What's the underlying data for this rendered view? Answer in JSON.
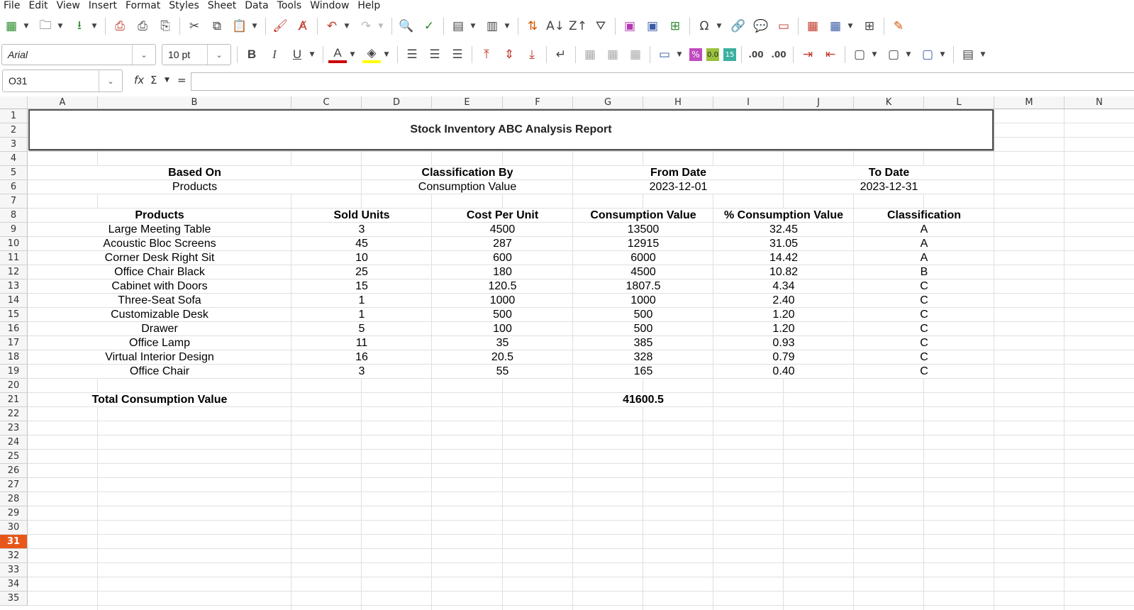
{
  "menu": [
    "File",
    "Edit",
    "View",
    "Insert",
    "Format",
    "Styles",
    "Sheet",
    "Data",
    "Tools",
    "Window",
    "Help"
  ],
  "toolbar": {
    "font_name": "Arial",
    "font_size": "10 pt",
    "bold_label": "B",
    "italic_label": "I",
    "underline_label": "U",
    "font_color_label": "A",
    "percent_label": "%",
    "number_label": "0.0",
    "date_label": "15",
    "add_decimal_label": ".00",
    "remove_decimal_label": ".00"
  },
  "formula_bar": {
    "name_box": "O31",
    "fx_label": "fx",
    "sum_label": "Σ",
    "equals_label": "=",
    "content": ""
  },
  "columns": [
    "A",
    "B",
    "C",
    "D",
    "E",
    "F",
    "G",
    "H",
    "I",
    "J",
    "K",
    "L",
    "M",
    "N"
  ],
  "rows": [
    "1",
    "2",
    "3",
    "4",
    "5",
    "6",
    "7",
    "8",
    "9",
    "10",
    "11",
    "12",
    "13",
    "14",
    "15",
    "16",
    "17",
    "18",
    "19",
    "20",
    "21",
    "22",
    "23",
    "24",
    "25",
    "26",
    "27",
    "28",
    "29",
    "30",
    "31",
    "32",
    "33",
    "34",
    "35"
  ],
  "active_row": "31",
  "report": {
    "title": "Stock Inventory ABC Analysis Report",
    "based_on_label": "Based On",
    "based_on_value": "Products",
    "classification_by_label": "Classification By",
    "classification_by_value": "Consumption Value",
    "from_date_label": "From Date",
    "from_date_value": "2023-12-01",
    "to_date_label": "To Date",
    "to_date_value": "2023-12-31",
    "headers": [
      "Products",
      "Sold Units",
      "Cost Per Unit",
      "Consumption Value",
      "% Consumption Value",
      "Classification"
    ],
    "items": [
      [
        "Large Meeting Table",
        "3",
        "4500",
        "13500",
        "32.45",
        "A"
      ],
      [
        "Acoustic Bloc Screens",
        "45",
        "287",
        "12915",
        "31.05",
        "A"
      ],
      [
        "Corner Desk Right Sit",
        "10",
        "600",
        "6000",
        "14.42",
        "A"
      ],
      [
        "Office Chair Black",
        "25",
        "180",
        "4500",
        "10.82",
        "B"
      ],
      [
        "Cabinet with Doors",
        "15",
        "120.5",
        "1807.5",
        "4.34",
        "C"
      ],
      [
        "Three-Seat Sofa",
        "1",
        "1000",
        "1000",
        "2.40",
        "C"
      ],
      [
        "Customizable Desk",
        "1",
        "500",
        "500",
        "1.20",
        "C"
      ],
      [
        "Drawer",
        "5",
        "100",
        "500",
        "1.20",
        "C"
      ],
      [
        "Office Lamp",
        "11",
        "35",
        "385",
        "0.93",
        "C"
      ],
      [
        "Virtual Interior Design",
        "16",
        "20.5",
        "328",
        "0.79",
        "C"
      ],
      [
        "Office Chair",
        "3",
        "55",
        "165",
        "0.40",
        "C"
      ]
    ],
    "total_label": "Total Consumption Value",
    "total_value": "41600.5"
  }
}
